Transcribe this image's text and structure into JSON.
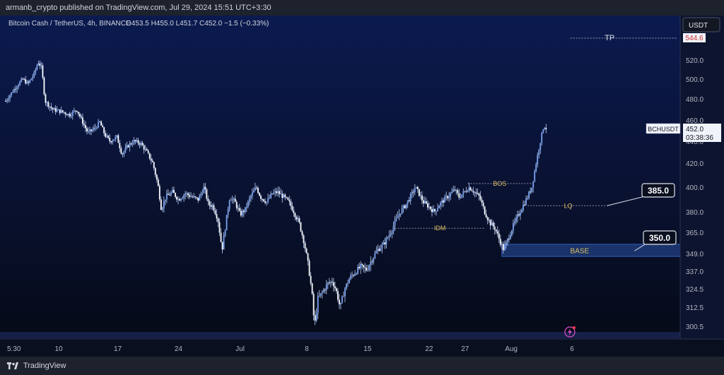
{
  "header": {
    "publish_line": "armanb_crypto published on TradingView.com, Jul 29, 2024 15:51 UTC+3:30"
  },
  "legend": {
    "symbol_line": "Bitcoin Cash / TetherUS, 4h, BINANCE",
    "ohlc": "O453.5  H455.0  L451.7  C452.0  −1.5 (−0.33%)"
  },
  "currency_button": "USDT",
  "footer": {
    "brand": "TradingView"
  },
  "colors": {
    "candle": "#bcd2f8",
    "accent": "#ffffff",
    "base_zone": "#1e3a78",
    "label_text": "#e0c060",
    "grid": "#2a3350"
  },
  "chart_data": {
    "type": "candlestick-line",
    "symbol": "BCHUSDT",
    "interval": "4h",
    "last_price": "452.0",
    "countdown": "03:38:36",
    "y_axis_ticks": [
      300.5,
      312.5,
      324.5,
      337.0,
      349.0,
      365.0,
      380.0,
      400.0,
      420.0,
      440.0,
      460.0,
      480.0,
      500.0,
      520.0
    ],
    "tp_label": "544.6",
    "x_axis_ticks": [
      "5:30",
      "10",
      "17",
      "24",
      "Jul",
      "8",
      "15",
      "22",
      "27",
      "Aug",
      "6"
    ],
    "price_path": [
      {
        "d": 0,
        "p": 478
      },
      {
        "d": 0.6,
        "p": 485
      },
      {
        "d": 1.2,
        "p": 492
      },
      {
        "d": 2.0,
        "p": 500
      },
      {
        "d": 2.6,
        "p": 495
      },
      {
        "d": 3.3,
        "p": 505
      },
      {
        "d": 3.8,
        "p": 518
      },
      {
        "d": 4.2,
        "p": 512
      },
      {
        "d": 4.6,
        "p": 478
      },
      {
        "d": 5.5,
        "p": 470
      },
      {
        "d": 6.5,
        "p": 468
      },
      {
        "d": 7.5,
        "p": 465
      },
      {
        "d": 8.3,
        "p": 470
      },
      {
        "d": 9.0,
        "p": 458
      },
      {
        "d": 9.6,
        "p": 448
      },
      {
        "d": 10.4,
        "p": 452
      },
      {
        "d": 11.0,
        "p": 458
      },
      {
        "d": 11.6,
        "p": 446
      },
      {
        "d": 12.2,
        "p": 440
      },
      {
        "d": 13.0,
        "p": 444
      },
      {
        "d": 13.6,
        "p": 428
      },
      {
        "d": 14.3,
        "p": 436
      },
      {
        "d": 15.0,
        "p": 440
      },
      {
        "d": 15.8,
        "p": 438
      },
      {
        "d": 16.5,
        "p": 430
      },
      {
        "d": 17.2,
        "p": 420
      },
      {
        "d": 17.8,
        "p": 402
      },
      {
        "d": 18.2,
        "p": 382
      },
      {
        "d": 18.7,
        "p": 392
      },
      {
        "d": 19.5,
        "p": 396
      },
      {
        "d": 20.2,
        "p": 390
      },
      {
        "d": 21.0,
        "p": 395
      },
      {
        "d": 21.8,
        "p": 392
      },
      {
        "d": 22.5,
        "p": 390
      },
      {
        "d": 23.2,
        "p": 400
      },
      {
        "d": 23.7,
        "p": 386
      },
      {
        "d": 24.2,
        "p": 385
      },
      {
        "d": 24.8,
        "p": 375
      },
      {
        "d": 25.3,
        "p": 352
      },
      {
        "d": 25.7,
        "p": 370
      },
      {
        "d": 26.2,
        "p": 392
      },
      {
        "d": 26.8,
        "p": 388
      },
      {
        "d": 27.4,
        "p": 378
      },
      {
        "d": 28.0,
        "p": 382
      },
      {
        "d": 28.6,
        "p": 392
      },
      {
        "d": 29.3,
        "p": 400
      },
      {
        "d": 29.8,
        "p": 392
      },
      {
        "d": 30.5,
        "p": 388
      },
      {
        "d": 31.2,
        "p": 395
      },
      {
        "d": 31.8,
        "p": 396
      },
      {
        "d": 32.5,
        "p": 392
      },
      {
        "d": 33.1,
        "p": 388
      },
      {
        "d": 33.7,
        "p": 380
      },
      {
        "d": 34.3,
        "p": 372
      },
      {
        "d": 34.8,
        "p": 360
      },
      {
        "d": 35.4,
        "p": 340
      },
      {
        "d": 35.8,
        "p": 322
      },
      {
        "d": 36.1,
        "p": 300
      },
      {
        "d": 36.5,
        "p": 318
      },
      {
        "d": 37.0,
        "p": 322
      },
      {
        "d": 37.6,
        "p": 328
      },
      {
        "d": 38.2,
        "p": 330
      },
      {
        "d": 38.7,
        "p": 322
      },
      {
        "d": 39.1,
        "p": 312
      },
      {
        "d": 39.6,
        "p": 324
      },
      {
        "d": 40.2,
        "p": 332
      },
      {
        "d": 40.8,
        "p": 336
      },
      {
        "d": 41.5,
        "p": 340
      },
      {
        "d": 42.2,
        "p": 338
      },
      {
        "d": 42.8,
        "p": 345
      },
      {
        "d": 43.5,
        "p": 352
      },
      {
        "d": 44.2,
        "p": 356
      },
      {
        "d": 44.9,
        "p": 364
      },
      {
        "d": 45.5,
        "p": 372
      },
      {
        "d": 46.1,
        "p": 380
      },
      {
        "d": 46.7,
        "p": 385
      },
      {
        "d": 47.3,
        "p": 392
      },
      {
        "d": 47.9,
        "p": 400
      },
      {
        "d": 48.3,
        "p": 395
      },
      {
        "d": 48.8,
        "p": 388
      },
      {
        "d": 49.5,
        "p": 384
      },
      {
        "d": 50.1,
        "p": 380
      },
      {
        "d": 50.7,
        "p": 386
      },
      {
        "d": 51.3,
        "p": 390
      },
      {
        "d": 51.9,
        "p": 394
      },
      {
        "d": 52.5,
        "p": 398
      },
      {
        "d": 53.0,
        "p": 392
      },
      {
        "d": 53.6,
        "p": 396
      },
      {
        "d": 54.2,
        "p": 400
      },
      {
        "d": 54.8,
        "p": 396
      },
      {
        "d": 55.4,
        "p": 392
      },
      {
        "d": 56.0,
        "p": 380
      },
      {
        "d": 56.6,
        "p": 372
      },
      {
        "d": 57.2,
        "p": 368
      },
      {
        "d": 57.8,
        "p": 358
      },
      {
        "d": 58.2,
        "p": 352
      },
      {
        "d": 58.6,
        "p": 358
      },
      {
        "d": 59.2,
        "p": 368
      },
      {
        "d": 59.8,
        "p": 376
      },
      {
        "d": 60.4,
        "p": 384
      },
      {
        "d": 61.0,
        "p": 392
      },
      {
        "d": 61.5,
        "p": 400
      },
      {
        "d": 62.0,
        "p": 420
      },
      {
        "d": 62.5,
        "p": 440
      },
      {
        "d": 62.9,
        "p": 455
      },
      {
        "d": 63.2,
        "p": 452
      }
    ],
    "annotations": [
      {
        "label": "TP",
        "price": 544.6,
        "from_d": 66.0,
        "to_d": 78.5
      },
      {
        "label": "BOS",
        "price": 403,
        "from_d": 54.0,
        "to_d": 61.5
      },
      {
        "label": "LQ",
        "price": 385,
        "from_d": 61.0,
        "to_d": 70.5
      },
      {
        "label": "IDM",
        "price": 368,
        "from_d": 45.5,
        "to_d": 56.0
      }
    ],
    "callouts": [
      "385.0",
      "350.0"
    ],
    "base_zone": {
      "label": "BASE",
      "from_price": 347,
      "to_price": 356,
      "from_d": 58.0,
      "to_d": 75.0
    }
  }
}
